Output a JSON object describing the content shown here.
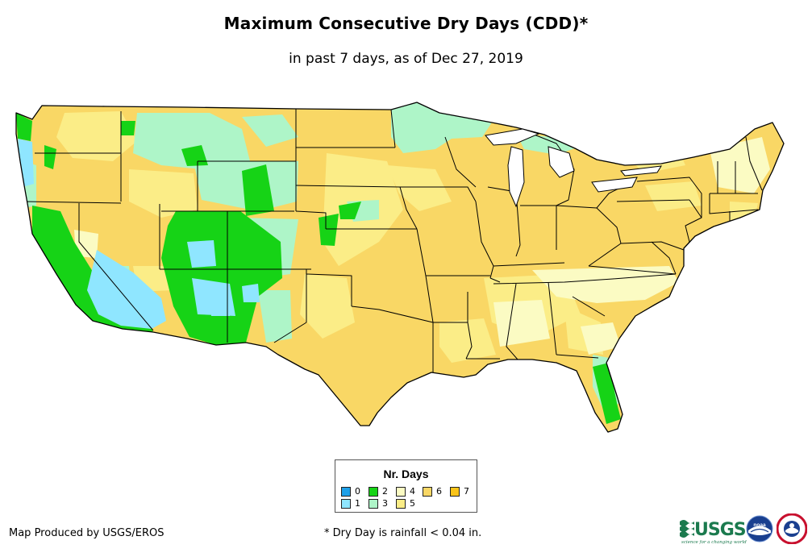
{
  "map": {
    "title": "Maximum Consecutive Dry Days (CDD)*",
    "subtitle": "in past 7 days, as of Dec 27, 2019",
    "region": "Contiguous United States",
    "legend": {
      "title": "Nr. Days",
      "items": [
        {
          "label": "0",
          "color": "#1ea0e8"
        },
        {
          "label": "1",
          "color": "#8fe6ff"
        },
        {
          "label": "2",
          "color": "#16d316"
        },
        {
          "label": "3",
          "color": "#aef5c8"
        },
        {
          "label": "4",
          "color": "#fbfbc3"
        },
        {
          "label": "5",
          "color": "#fbed87"
        },
        {
          "label": "6",
          "color": "#f9d765"
        },
        {
          "label": "7",
          "color": "#fac419"
        }
      ]
    }
  },
  "footer": {
    "credit": "Map Produced by USGS/EROS",
    "footnote": "* Dry Day is rainfall < 0.04 in.",
    "logos": [
      {
        "name": "usgs-logo",
        "wordmark": "USGS",
        "tagline": "science for a changing world"
      },
      {
        "name": "noaa-logo",
        "text": "noaa"
      },
      {
        "name": "nws-logo"
      }
    ]
  }
}
